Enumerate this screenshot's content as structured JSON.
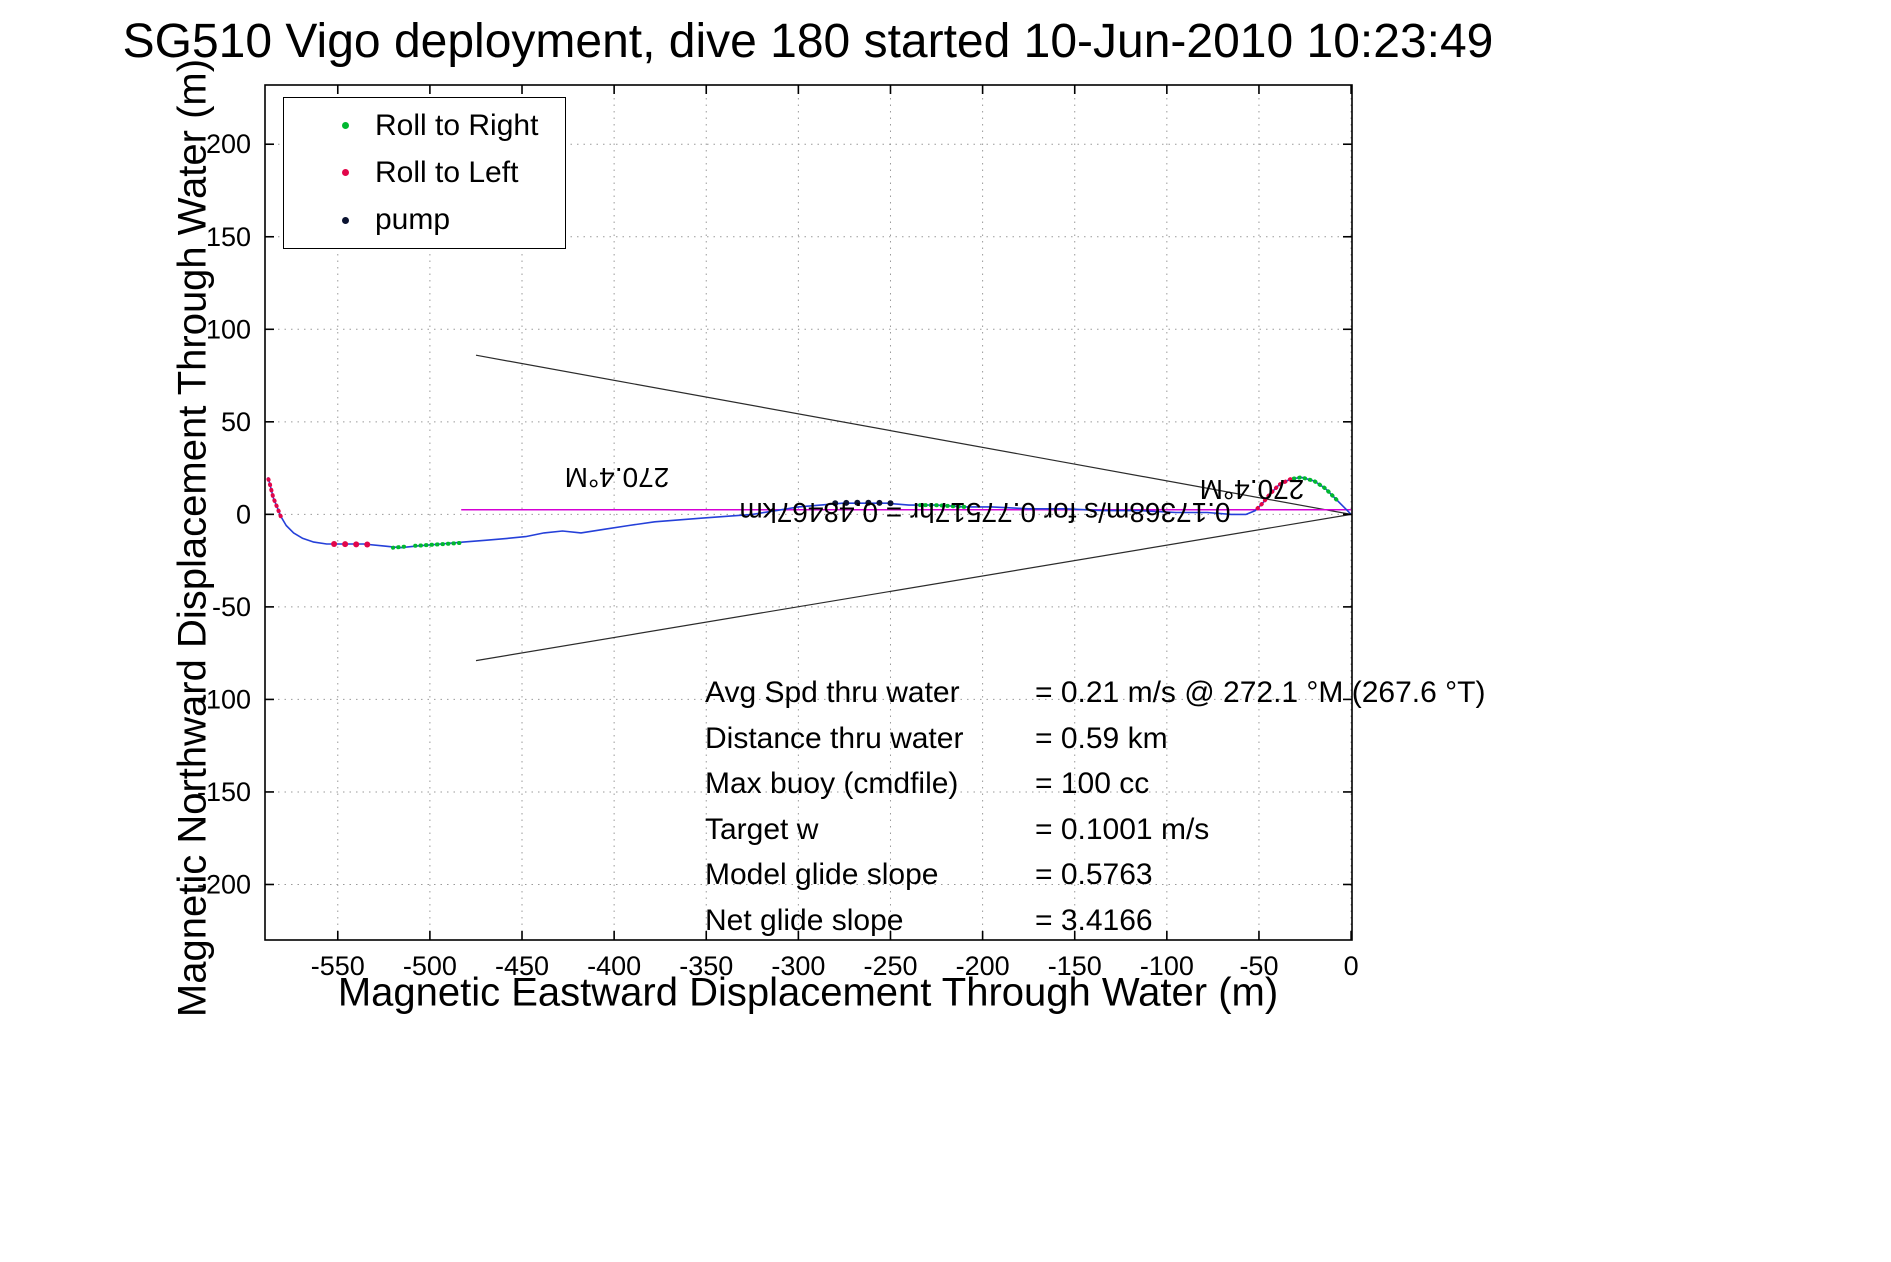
{
  "title": "SG510 Vigo deployment, dive 180 started 10-Jun-2010 10:23:49",
  "axes": {
    "xlabel": "Magnetic Eastward Displacement Through Water (m)",
    "ylabel": "Magnetic Northward Displacement Through Water (m)",
    "x_ticks": [
      -550,
      -500,
      -450,
      -400,
      -350,
      -300,
      -250,
      -200,
      -150,
      -100,
      -50,
      0
    ],
    "y_ticks": [
      -200,
      -150,
      -100,
      -50,
      0,
      50,
      100,
      150,
      200
    ]
  },
  "legend": {
    "items": [
      {
        "label": "Roll to Right",
        "color": "#00b830",
        "marker": "dot"
      },
      {
        "label": "Roll to Left",
        "color": "#e2064a",
        "marker": "dot"
      },
      {
        "label": "pump",
        "color": "#0a1230",
        "marker": "dot"
      }
    ]
  },
  "annotations": {
    "bearing_left": "270.4°M",
    "bearing_right": "270.4°M",
    "run_summary": "0.17368m/s for 0.77517hr = 0.48467km"
  },
  "stats": {
    "rows": [
      {
        "label": "Avg Spd thru water",
        "value": "=  0.21 m/s @ 272.1 °M (267.6 °T)"
      },
      {
        "label": "Distance thru water",
        "value": "=  0.59 km"
      },
      {
        "label": "Max buoy (cmdfile)",
        "value": "= 100 cc"
      },
      {
        "label": "Target w",
        "value": "= 0.1001 m/s"
      },
      {
        "label": "Model glide slope",
        "value": "= 0.5763"
      },
      {
        "label": "Net glide slope",
        "value": "= 3.4166"
      }
    ]
  },
  "chart_data": {
    "type": "line",
    "title": "SG510 Vigo deployment, dive 180 started 10-Jun-2010 10:23:49",
    "xlabel": "Magnetic Eastward Displacement Through Water (m)",
    "ylabel": "Magnetic Northward Displacement Through Water (m)",
    "xlim": [
      -589.5,
      0.5
    ],
    "ylim": [
      -230,
      232
    ],
    "grid": true,
    "legend_position": "top-left",
    "colors": {
      "track": "#2540d9",
      "green": "#00b830",
      "red": "#e2064a",
      "pump": "#0a1230",
      "heading": "#d400d4",
      "cone": "#2b2b2b"
    },
    "track": [
      [
        0,
        0
      ],
      [
        -3,
        3
      ],
      [
        -8,
        8
      ],
      [
        -14,
        14
      ],
      [
        -20,
        18
      ],
      [
        -27,
        20
      ],
      [
        -33,
        19
      ],
      [
        -39,
        16
      ],
      [
        -44,
        11
      ],
      [
        -48,
        6
      ],
      [
        -52,
        2
      ],
      [
        -57,
        0
      ],
      [
        -65,
        0
      ],
      [
        -78,
        1
      ],
      [
        -95,
        1
      ],
      [
        -115,
        2
      ],
      [
        -135,
        2
      ],
      [
        -155,
        3
      ],
      [
        -175,
        3
      ],
      [
        -195,
        4
      ],
      [
        -210,
        4
      ],
      [
        -225,
        5
      ],
      [
        -240,
        5
      ],
      [
        -252,
        6
      ],
      [
        -264,
        6
      ],
      [
        -276,
        6
      ],
      [
        -288,
        5
      ],
      [
        -300,
        4
      ],
      [
        -312,
        2
      ],
      [
        -325,
        0
      ],
      [
        -338,
        -1
      ],
      [
        -352,
        -2
      ],
      [
        -365,
        -3
      ],
      [
        -378,
        -4
      ],
      [
        -392,
        -6
      ],
      [
        -405,
        -8
      ],
      [
        -418,
        -10
      ],
      [
        -428,
        -9
      ],
      [
        -438,
        -10
      ],
      [
        -448,
        -12
      ],
      [
        -458,
        -13
      ],
      [
        -470,
        -14
      ],
      [
        -482,
        -15
      ],
      [
        -494,
        -16
      ],
      [
        -506,
        -17
      ],
      [
        -516,
        -18
      ],
      [
        -526,
        -17
      ],
      [
        -536,
        -16
      ],
      [
        -546,
        -16
      ],
      [
        -556,
        -16
      ],
      [
        -563,
        -15
      ],
      [
        -569,
        -13
      ],
      [
        -574,
        -10
      ],
      [
        -578,
        -6
      ],
      [
        -581,
        -1
      ],
      [
        -583,
        4
      ],
      [
        -585,
        9
      ],
      [
        -586,
        13
      ],
      [
        -587,
        17
      ],
      [
        -588,
        20
      ]
    ],
    "overlays": [
      {
        "name": "roll-right-east",
        "color_key": "green",
        "style": "line",
        "points": [
          [
            -8,
            8
          ],
          [
            -14,
            14
          ],
          [
            -20,
            18
          ],
          [
            -27,
            20
          ],
          [
            -33,
            19
          ]
        ]
      },
      {
        "name": "roll-left-east",
        "color_key": "red",
        "style": "line",
        "points": [
          [
            -33,
            19
          ],
          [
            -39,
            16
          ],
          [
            -44,
            11
          ],
          [
            -48,
            6
          ],
          [
            -52,
            2
          ]
        ]
      },
      {
        "name": "roll-right-mid",
        "color_key": "green",
        "style": "line",
        "points": [
          [
            -210,
            4
          ],
          [
            -218,
            4.5
          ],
          [
            -226,
            5
          ],
          [
            -234,
            5
          ]
        ]
      },
      {
        "name": "pump-cluster",
        "color_key": "pump",
        "style": "dots",
        "points": [
          [
            -250,
            6
          ],
          [
            -256,
            6.2
          ],
          [
            -262,
            6.3
          ],
          [
            -268,
            6.3
          ],
          [
            -274,
            6.2
          ],
          [
            -280,
            6
          ]
        ]
      },
      {
        "name": "roll-right-west-a",
        "color_key": "green",
        "style": "line",
        "points": [
          [
            -484,
            -15.5
          ],
          [
            -492,
            -16
          ],
          [
            -500,
            -16.5
          ],
          [
            -508,
            -17
          ]
        ]
      },
      {
        "name": "roll-right-west-b",
        "color_key": "green",
        "style": "line",
        "points": [
          [
            -514,
            -17.5
          ],
          [
            -520,
            -18
          ]
        ]
      },
      {
        "name": "roll-left-west-dots",
        "color_key": "red",
        "style": "dots",
        "points": [
          [
            -534,
            -16.3
          ],
          [
            -540,
            -16.2
          ],
          [
            -546,
            -16.1
          ],
          [
            -552,
            -16
          ]
        ]
      },
      {
        "name": "roll-left-far-west",
        "color_key": "red",
        "style": "line",
        "points": [
          [
            -581,
            -1
          ],
          [
            -583,
            4
          ],
          [
            -585,
            9
          ],
          [
            -586,
            13
          ],
          [
            -587,
            17
          ],
          [
            -588,
            20
          ]
        ]
      }
    ],
    "cone_lines": [
      [
        [
          0,
          0
        ],
        [
          -475,
          86
        ]
      ],
      [
        [
          0,
          0
        ],
        [
          -475,
          -79
        ]
      ]
    ],
    "heading_line": [
      [
        -483,
        2.5
      ],
      [
        0,
        2.5
      ]
    ]
  }
}
